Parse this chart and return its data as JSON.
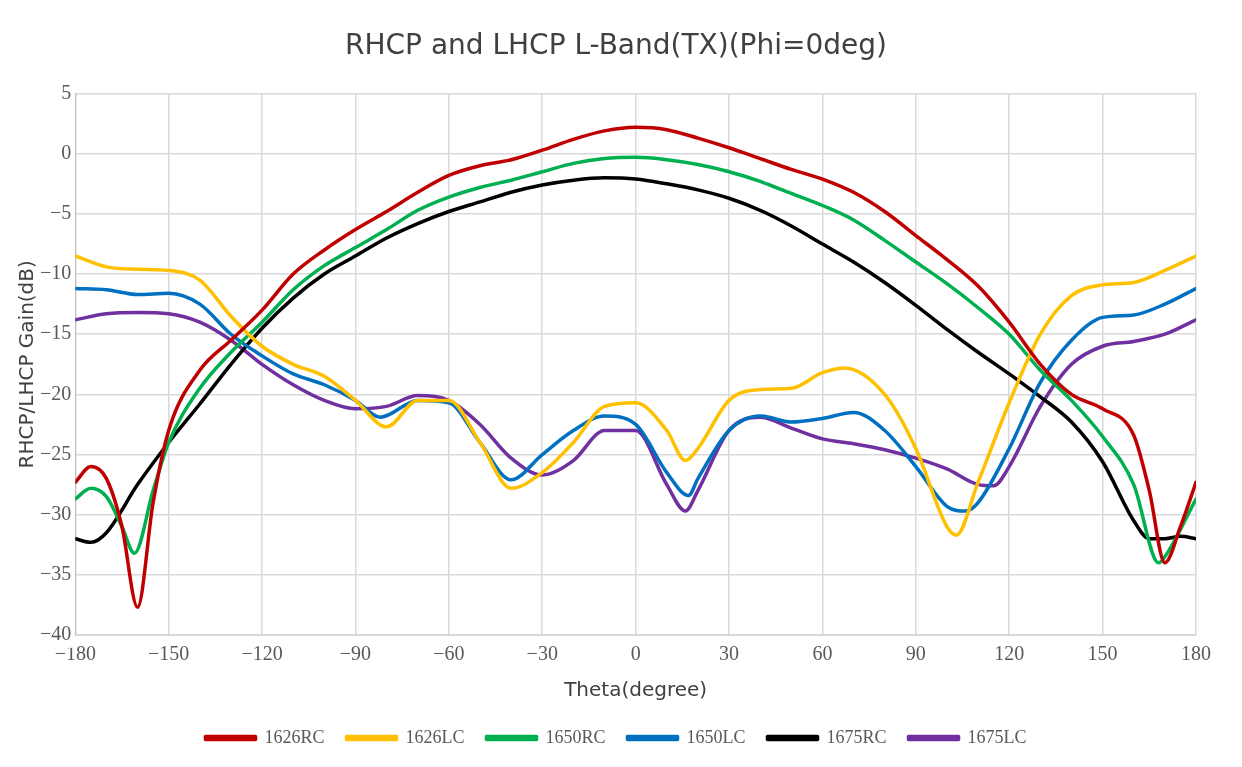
{
  "chart_data": {
    "type": "line",
    "title": "RHCP and LHCP L-Band(TX)(Phi=0deg)",
    "xlabel": "Theta(degree)",
    "ylabel": "RHCP/LHCP Gain(dB)",
    "xlim": [
      -180,
      180
    ],
    "xticks": [
      -180,
      -150,
      -120,
      -90,
      -60,
      -30,
      0,
      30,
      60,
      90,
      120,
      150,
      180
    ],
    "ylim": [
      -40,
      5
    ],
    "yticks": [
      -40,
      -35,
      -30,
      -25,
      -20,
      -15,
      -10,
      -5,
      0,
      5
    ],
    "grid": true,
    "legend": "bottom",
    "marker": "none",
    "line_style": "solid",
    "series": [
      {
        "name": "1626RC",
        "color": "#c00000",
        "x": [
          -180,
          -175,
          -170,
          -165,
          -160,
          -155,
          -150,
          -140,
          -130,
          -120,
          -110,
          -100,
          -90,
          -80,
          -70,
          -60,
          -50,
          -40,
          -30,
          -20,
          -10,
          0,
          10,
          20,
          30,
          40,
          50,
          60,
          70,
          80,
          90,
          100,
          110,
          120,
          130,
          140,
          150,
          160,
          165,
          170,
          175,
          180
        ],
        "values": [
          -27.3,
          -26,
          -27,
          -31,
          -37.7,
          -29,
          -23,
          -18,
          -15.5,
          -13,
          -10,
          -8,
          -6.3,
          -4.8,
          -3.2,
          -1.8,
          -1,
          -0.5,
          0.3,
          1.2,
          1.9,
          2.2,
          2,
          1.3,
          0.5,
          -0.4,
          -1.3,
          -2.1,
          -3.2,
          -4.8,
          -6.8,
          -8.8,
          -11,
          -14,
          -17.5,
          -20,
          -21.2,
          -23.4,
          -28,
          -34,
          -31,
          -27.3
        ]
      },
      {
        "name": "1626LC",
        "color": "#ffc000",
        "x": [
          -180,
          -170,
          -160,
          -150,
          -140,
          -130,
          -120,
          -110,
          -100,
          -90,
          -80,
          -70,
          -60,
          -50,
          -40,
          -30,
          -20,
          -10,
          0,
          10,
          16,
          20,
          30,
          40,
          50,
          60,
          67,
          80,
          90,
          100,
          103,
          110,
          120,
          130,
          140,
          150,
          160,
          170,
          180
        ],
        "values": [
          -8.5,
          -9.4,
          -9.6,
          -9.7,
          -10.5,
          -13.5,
          -16,
          -17.5,
          -18.5,
          -20.5,
          -22.7,
          -20.5,
          -20.5,
          -24,
          -27.8,
          -26.5,
          -24,
          -21,
          -20.7,
          -23,
          -25.5,
          -24.5,
          -20.5,
          -19.6,
          -19.5,
          -18.2,
          -17.8,
          -20,
          -24.5,
          -31,
          -31.7,
          -27.3,
          -20.7,
          -15,
          -11.8,
          -10.9,
          -10.7,
          -9.7,
          -8.5
        ]
      },
      {
        "name": "1650RC",
        "color": "#00b050",
        "x": [
          -180,
          -175,
          -170,
          -165,
          -161,
          -155,
          -150,
          -140,
          -130,
          -120,
          -110,
          -100,
          -90,
          -80,
          -70,
          -60,
          -50,
          -40,
          -30,
          -20,
          -10,
          0,
          10,
          20,
          30,
          40,
          50,
          60,
          70,
          80,
          90,
          100,
          110,
          120,
          130,
          140,
          150,
          160,
          168,
          170,
          180
        ],
        "values": [
          -28.7,
          -27.8,
          -28.5,
          -31,
          -33.2,
          -28,
          -24,
          -19.5,
          -16.5,
          -14,
          -11.3,
          -9.3,
          -7.8,
          -6.3,
          -4.7,
          -3.6,
          -2.8,
          -2.2,
          -1.5,
          -0.8,
          -0.4,
          -0.3,
          -0.5,
          -0.9,
          -1.5,
          -2.3,
          -3.3,
          -4.3,
          -5.5,
          -7.2,
          -9,
          -10.8,
          -12.8,
          -15,
          -18,
          -20.5,
          -23.5,
          -27.5,
          -34,
          -33.5,
          -28.7
        ]
      },
      {
        "name": "1650LC",
        "color": "#0070c0",
        "x": [
          -180,
          -170,
          -160,
          -150,
          -140,
          -130,
          -120,
          -110,
          -100,
          -90,
          -82,
          -70,
          -60,
          -50,
          -40,
          -30,
          -20,
          -10,
          0,
          10,
          17,
          20,
          30,
          40,
          50,
          60,
          70,
          80,
          90,
          100,
          106,
          110,
          120,
          130,
          140,
          150,
          160,
          170,
          180
        ],
        "values": [
          -11.2,
          -11.3,
          -11.7,
          -11.6,
          -12.5,
          -15,
          -16.8,
          -18.3,
          -19.2,
          -20.5,
          -21.9,
          -20.5,
          -20.7,
          -24,
          -27.1,
          -25,
          -23,
          -21.8,
          -22.5,
          -26.5,
          -28.4,
          -27,
          -23,
          -21.8,
          -22.3,
          -22,
          -21.5,
          -23,
          -26,
          -29.3,
          -29.7,
          -29,
          -24.5,
          -19,
          -15.5,
          -13.6,
          -13.4,
          -12.5,
          -11.2
        ]
      },
      {
        "name": "1675RC",
        "color": "#000000",
        "x": [
          -180,
          -175,
          -170,
          -160,
          -150,
          -140,
          -130,
          -120,
          -110,
          -100,
          -90,
          -80,
          -70,
          -60,
          -50,
          -40,
          -30,
          -20,
          -10,
          0,
          10,
          20,
          30,
          40,
          50,
          60,
          70,
          80,
          90,
          100,
          110,
          120,
          130,
          140,
          150,
          160,
          165,
          170,
          175,
          180
        ],
        "values": [
          -32,
          -32.3,
          -31.5,
          -27.5,
          -24,
          -20.8,
          -17.5,
          -14.5,
          -12,
          -10,
          -8.5,
          -7,
          -5.8,
          -4.8,
          -4,
          -3.2,
          -2.6,
          -2.2,
          -2,
          -2.1,
          -2.5,
          -3,
          -3.7,
          -4.7,
          -6,
          -7.5,
          -9,
          -10.7,
          -12.6,
          -14.6,
          -16.5,
          -18.3,
          -20.2,
          -22.3,
          -25.6,
          -30.5,
          -32,
          -32,
          -31.8,
          -32
        ]
      },
      {
        "name": "1675LC",
        "color": "#7030a0",
        "x": [
          -180,
          -170,
          -160,
          -150,
          -140,
          -130,
          -120,
          -110,
          -100,
          -90,
          -80,
          -70,
          -60,
          -50,
          -40,
          -30,
          -20,
          -10,
          0,
          10,
          16,
          20,
          30,
          40,
          50,
          60,
          70,
          80,
          90,
          100,
          110,
          115,
          120,
          130,
          140,
          150,
          160,
          170,
          180
        ],
        "values": [
          -13.8,
          -13.3,
          -13.2,
          -13.3,
          -14,
          -15.5,
          -17.5,
          -19.2,
          -20.5,
          -21.2,
          -21,
          -20.1,
          -20.5,
          -22.5,
          -25.3,
          -26.7,
          -25.5,
          -23,
          -23,
          -27.5,
          -29.7,
          -28,
          -23,
          -21.9,
          -22.8,
          -23.7,
          -24.1,
          -24.6,
          -25.3,
          -26.2,
          -27.5,
          -27.6,
          -26,
          -21,
          -17.5,
          -16,
          -15.6,
          -15,
          -13.8
        ]
      }
    ]
  }
}
